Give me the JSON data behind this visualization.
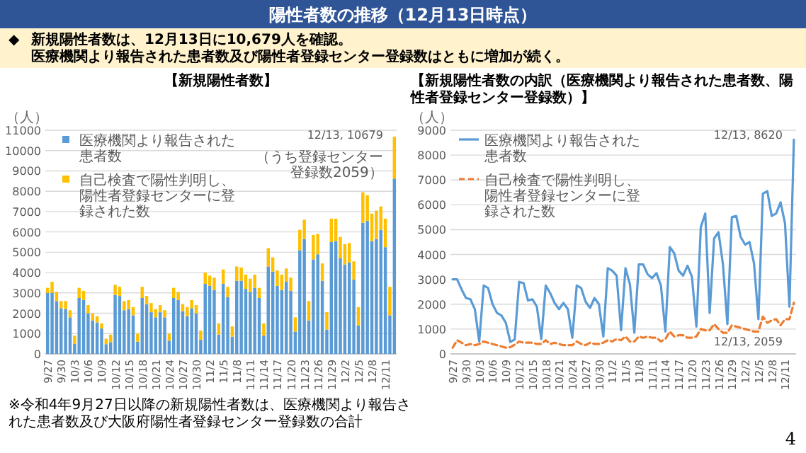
{
  "chart_data": [
    {
      "type": "other",
      "title": "陽性者数の推移（12月13日時点）",
      "annotations": [
        "◆",
        "新規陽性者数は、12月13日に10,679人を確認。",
        "医療機関より報告された患者数及び陽性者登録センター登録数はともに増加が続く。",
        "4"
      ]
    },
    {
      "type": "bar",
      "stacked": true,
      "title": "【新規陽性者数】",
      "ylabel": "（人）",
      "categories": [
        "9/27",
        null,
        null,
        "9/30",
        null,
        null,
        "10/3",
        null,
        null,
        "10/6",
        null,
        null,
        "10/9",
        null,
        null,
        "10/12",
        null,
        null,
        "10/15",
        null,
        null,
        "10/18",
        null,
        null,
        "10/21",
        null,
        null,
        "10/24",
        null,
        null,
        "10/27",
        null,
        null,
        "10/30",
        null,
        null,
        "11/2",
        null,
        null,
        "11/5",
        null,
        null,
        "11/8",
        null,
        null,
        "11/11",
        null,
        null,
        "11/14",
        null,
        null,
        "11/17",
        null,
        null,
        "11/20",
        null,
        null,
        "11/23",
        null,
        null,
        "11/26",
        null,
        null,
        "11/29",
        null,
        null,
        "12/2",
        null,
        null,
        "12/5",
        null,
        null,
        "12/8",
        null,
        null,
        "12/11",
        null,
        null
      ],
      "series": [
        {
          "name": "医療機関より報告された患者数",
          "color": "#5b9bd5",
          "values": [
            3000,
            3000,
            2600,
            2250,
            2200,
            1800,
            500,
            2750,
            2650,
            2000,
            1650,
            1550,
            1250,
            480,
            580,
            2900,
            2850,
            2150,
            2200,
            1900,
            600,
            2750,
            2450,
            2050,
            1800,
            2050,
            1800,
            650,
            2750,
            2650,
            2100,
            1850,
            2250,
            2000,
            700,
            3450,
            3350,
            3150,
            950,
            3450,
            2800,
            850,
            3600,
            3600,
            3200,
            3050,
            3250,
            2750,
            900,
            4300,
            4050,
            3350,
            3150,
            3550,
            3100,
            1100,
            5100,
            5650,
            1650,
            4650,
            4900,
            3600,
            1200,
            5500,
            5550,
            4700,
            4400,
            4500,
            3650,
            1400,
            6450,
            6550,
            5550,
            5650,
            6100,
            5250,
            1900,
            8620
          ]
        },
        {
          "name": "自己検査で陽性判明し、陽性者登録センターに登録された数",
          "color": "#ffc000",
          "values": [
            250,
            550,
            450,
            350,
            400,
            350,
            400,
            500,
            450,
            400,
            350,
            300,
            250,
            270,
            370,
            500,
            450,
            450,
            450,
            400,
            400,
            550,
            400,
            450,
            400,
            350,
            350,
            350,
            500,
            400,
            350,
            450,
            400,
            400,
            450,
            550,
            500,
            600,
            550,
            700,
            500,
            500,
            700,
            650,
            700,
            650,
            650,
            500,
            600,
            900,
            700,
            750,
            750,
            650,
            650,
            700,
            1000,
            950,
            950,
            1200,
            1000,
            850,
            850,
            1150,
            1100,
            1050,
            1000,
            950,
            900,
            900,
            1500,
            1250,
            1350,
            1400,
            1150,
            1400,
            1400,
            2059
          ]
        }
      ],
      "ylim": [
        0,
        11000
      ],
      "yticks": [
        0,
        1000,
        2000,
        3000,
        4000,
        5000,
        6000,
        7000,
        8000,
        9000,
        10000,
        11000
      ],
      "grid": "y",
      "legend": "top left",
      "annotations": [
        "12/13, 10679",
        "（うち登録センター登録数2059）",
        "※令和4年9月27日以降の新規陽性者数は、医療機関より報告された患者数及び大阪府陽性者登録センター登録数の合計"
      ]
    },
    {
      "type": "line",
      "title": "【新規陽性者数の内訳（医療機関より報告された患者数、陽性者登録センター登録数）】",
      "ylabel": "（人）",
      "categories": [
        "9/27",
        null,
        null,
        "9/30",
        null,
        null,
        "10/3",
        null,
        null,
        "10/6",
        null,
        null,
        "10/9",
        null,
        null,
        "10/12",
        null,
        null,
        "10/15",
        null,
        null,
        "10/18",
        null,
        null,
        "10/21",
        null,
        null,
        "10/24",
        null,
        null,
        "10/27",
        null,
        null,
        "10/30",
        null,
        null,
        "11/2",
        null,
        null,
        "11/5",
        null,
        null,
        "11/8",
        null,
        null,
        "11/11",
        null,
        null,
        "11/14",
        null,
        null,
        "11/17",
        null,
        null,
        "11/20",
        null,
        null,
        "11/23",
        null,
        null,
        "11/26",
        null,
        null,
        "11/29",
        null,
        null,
        "12/2",
        null,
        null,
        "12/5",
        null,
        null,
        "12/8",
        null,
        null,
        "12/11",
        null,
        null
      ],
      "series": [
        {
          "name": "医療機関より報告された患者数",
          "color": "#5b9bd5",
          "line_style": "solid",
          "values": [
            3000,
            3000,
            2600,
            2250,
            2200,
            1800,
            500,
            2750,
            2650,
            2000,
            1650,
            1550,
            1250,
            480,
            580,
            2900,
            2850,
            2150,
            2200,
            1900,
            600,
            2750,
            2450,
            2050,
            1800,
            2050,
            1800,
            650,
            2750,
            2650,
            2100,
            1850,
            2250,
            2000,
            700,
            3450,
            3350,
            3150,
            950,
            3450,
            2800,
            850,
            3600,
            3600,
            3200,
            3050,
            3250,
            2750,
            900,
            4300,
            4050,
            3350,
            3150,
            3550,
            3100,
            1100,
            5100,
            5650,
            1650,
            4650,
            4900,
            3600,
            1200,
            5500,
            5550,
            4700,
            4400,
            4500,
            3650,
            1400,
            6450,
            6550,
            5550,
            5650,
            6100,
            5250,
            1900,
            8620
          ]
        },
        {
          "name": "自己検査で陽性判明し、陽性者登録センターに登録された数",
          "color": "#ed7d31",
          "line_style": "dashed",
          "values": [
            250,
            550,
            450,
            350,
            400,
            350,
            400,
            500,
            450,
            400,
            350,
            300,
            250,
            270,
            370,
            500,
            450,
            450,
            450,
            400,
            400,
            550,
            400,
            450,
            400,
            350,
            350,
            350,
            500,
            400,
            350,
            450,
            400,
            400,
            450,
            550,
            500,
            600,
            550,
            700,
            500,
            500,
            700,
            650,
            700,
            650,
            650,
            500,
            600,
            900,
            700,
            750,
            750,
            650,
            650,
            700,
            1000,
            950,
            950,
            1200,
            1000,
            850,
            850,
            1150,
            1100,
            1050,
            1000,
            950,
            900,
            900,
            1500,
            1250,
            1350,
            1400,
            1150,
            1400,
            1400,
            2059
          ]
        }
      ],
      "ylim": [
        0,
        9000
      ],
      "yticks": [
        0,
        1000,
        2000,
        3000,
        4000,
        5000,
        6000,
        7000,
        8000,
        9000
      ],
      "grid": "y",
      "legend": "top left",
      "annotations": [
        "12/13, 8620",
        "12/13, 2059"
      ]
    }
  ]
}
